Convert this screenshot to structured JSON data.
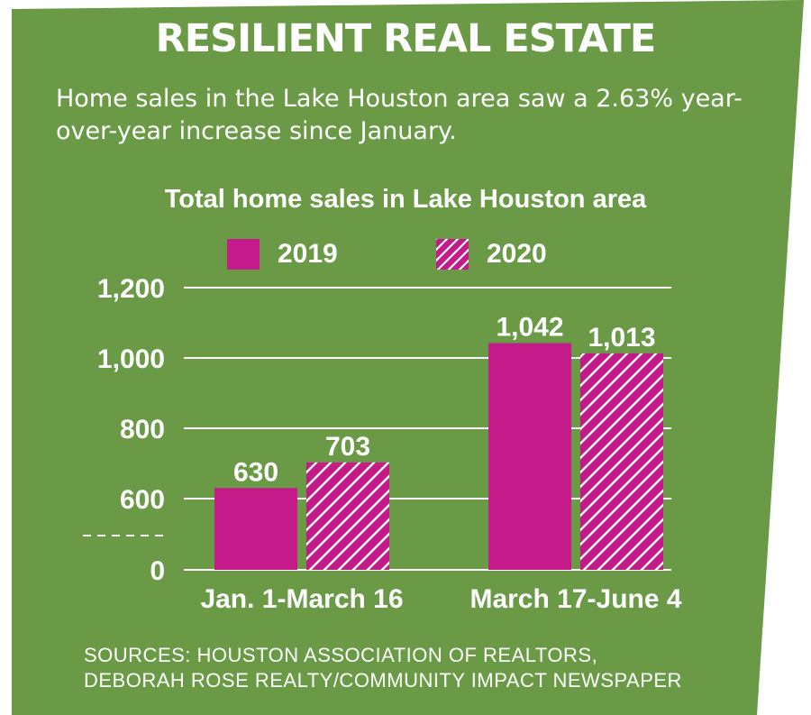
{
  "headline": "RESILIENT REAL ESTATE",
  "dek": "Home sales in the Lake Houston area saw a 2.63% year-over-year increase since January.",
  "sources": [
    "SOURCES: HOUSTON ASSOCIATION OF REALTORS,",
    "DEBORAH ROSE REALTY/COMMUNITY IMPACT NEWSPAPER"
  ],
  "colors": {
    "background": "#6a9a46",
    "bar": "#c51a8a",
    "text": "#ffffff"
  },
  "chart_data": {
    "type": "bar",
    "title": "Total home sales in Lake Houston area",
    "xlabel": "",
    "ylabel": "",
    "categories": [
      "Jan. 1-March 16",
      "March 17-June 4"
    ],
    "series": [
      {
        "name": "2019",
        "values": [
          630,
          1042
        ],
        "value_labels": [
          "630",
          "1,042"
        ],
        "pattern": "solid"
      },
      {
        "name": "2020",
        "values": [
          703,
          1013
        ],
        "value_labels": [
          "703",
          "1,013"
        ],
        "pattern": "hatched"
      }
    ],
    "y_ticks": [
      {
        "value": 0,
        "label": "0"
      },
      {
        "value": 600,
        "label": "600"
      },
      {
        "value": 800,
        "label": "800"
      },
      {
        "value": 1000,
        "label": "1,000"
      },
      {
        "value": 1200,
        "label": "1,200"
      }
    ],
    "y_axis_break": "between 0 and 600",
    "ylim": [
      0,
      1200
    ],
    "grid": true,
    "legend_position": "top"
  }
}
